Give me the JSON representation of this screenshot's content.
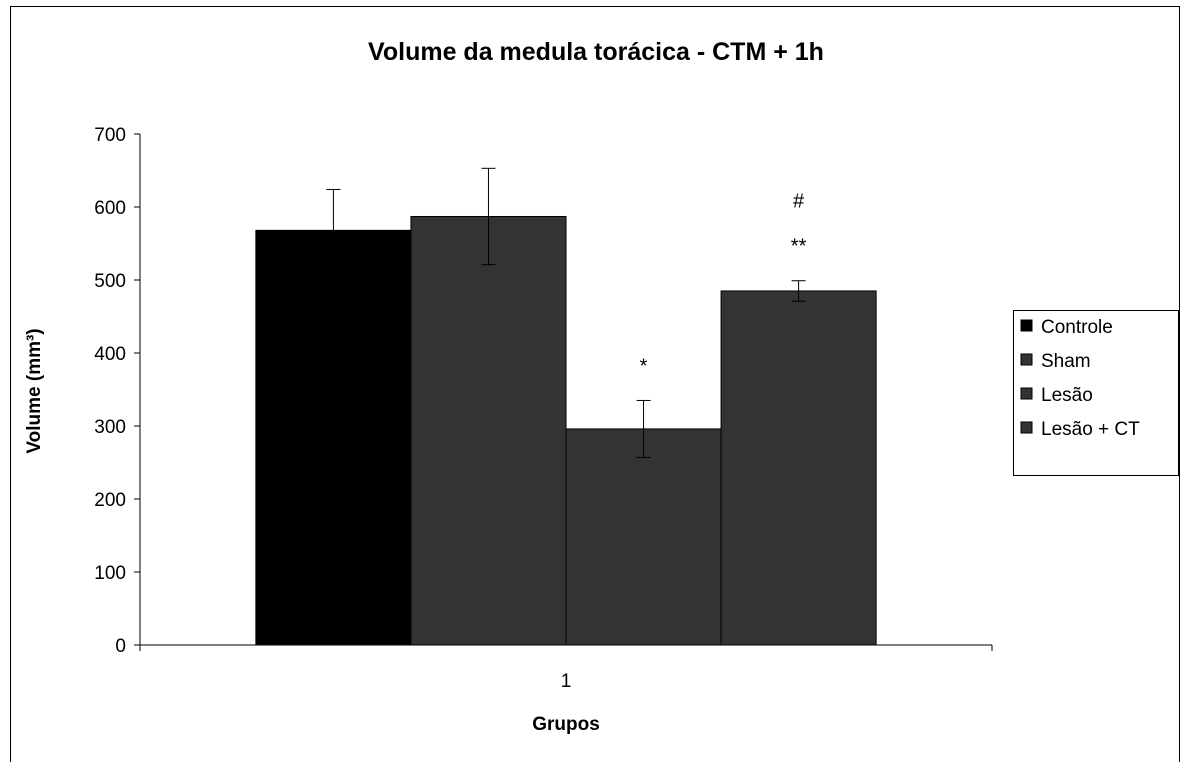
{
  "chart_data": {
    "type": "bar",
    "title": "Volume da medula torácica - CTM + 1h",
    "xlabel": "Grupos",
    "ylabel": "Volume (mm³)",
    "categories": [
      "1"
    ],
    "ylim": [
      0,
      700
    ],
    "yticks": [
      0,
      100,
      200,
      300,
      400,
      500,
      600,
      700
    ],
    "grid": false,
    "legend_position": "right",
    "series": [
      {
        "name": "Controle",
        "values": [
          568
        ],
        "error": [
          56
        ],
        "color": "#000000",
        "annotation": ""
      },
      {
        "name": "Sham",
        "values": [
          587
        ],
        "error": [
          66
        ],
        "color": "#333333",
        "annotation": ""
      },
      {
        "name": "Lesão",
        "values": [
          296
        ],
        "error": [
          39
        ],
        "color": "#333333",
        "annotation": "*"
      },
      {
        "name": "Lesão + CT",
        "values": [
          485
        ],
        "error": [
          14
        ],
        "color": "#333333",
        "annotation": "**",
        "annotation2": "#"
      }
    ]
  }
}
